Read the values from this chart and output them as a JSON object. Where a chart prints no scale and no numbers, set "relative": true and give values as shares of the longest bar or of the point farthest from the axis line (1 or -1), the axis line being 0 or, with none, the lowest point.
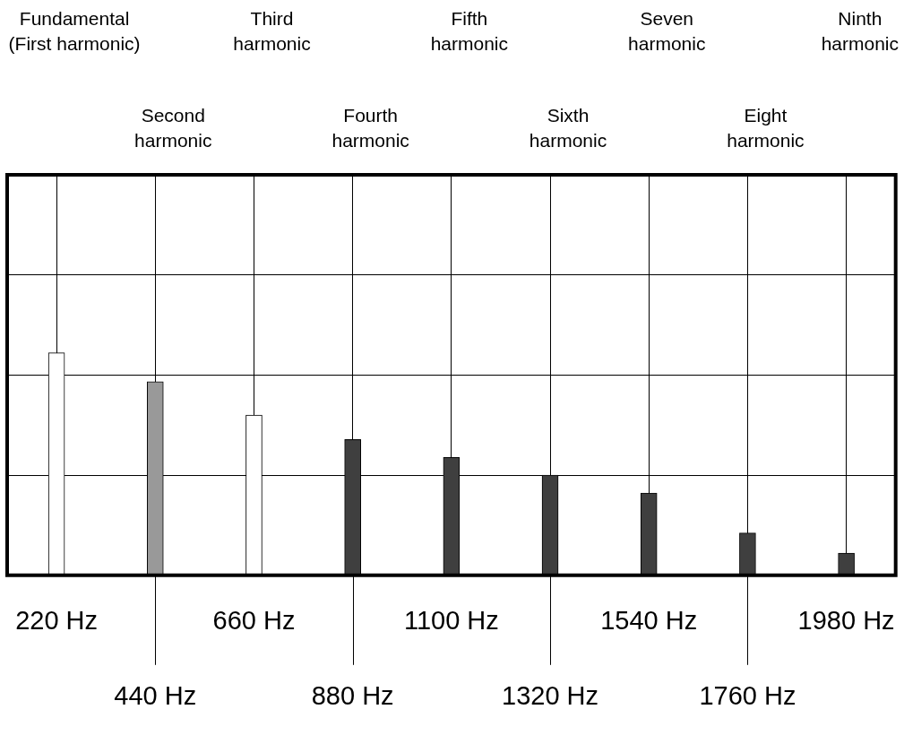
{
  "chart_data": {
    "type": "bar",
    "relative": true,
    "grid": true,
    "categories": [
      "220 Hz",
      "440 Hz",
      "660 Hz",
      "880 Hz",
      "1100 Hz",
      "1320 Hz",
      "1540 Hz",
      "1760 Hz",
      "1980 Hz"
    ],
    "values": [
      1,
      0.87,
      0.72,
      0.61,
      0.53,
      0.45,
      0.37,
      0.19,
      0.1
    ],
    "colors": [
      "#ffffff",
      "#999999",
      "#ffffff",
      "#3f3f3f",
      "#3f3f3f",
      "#3f3f3f",
      "#3f3f3f",
      "#3f3f3f",
      "#3f3f3f"
    ],
    "annotations": [
      "Fundamental\n(First harmonic)",
      "Second\nharmonic",
      "Third\nharmonic",
      "Fourth\nharmonic",
      "Fifth\nharmonic",
      "Sixth\nharmonic",
      "Seven\nharmonic",
      "Eight\nharmonic",
      "Ninth\nharmonic"
    ]
  }
}
